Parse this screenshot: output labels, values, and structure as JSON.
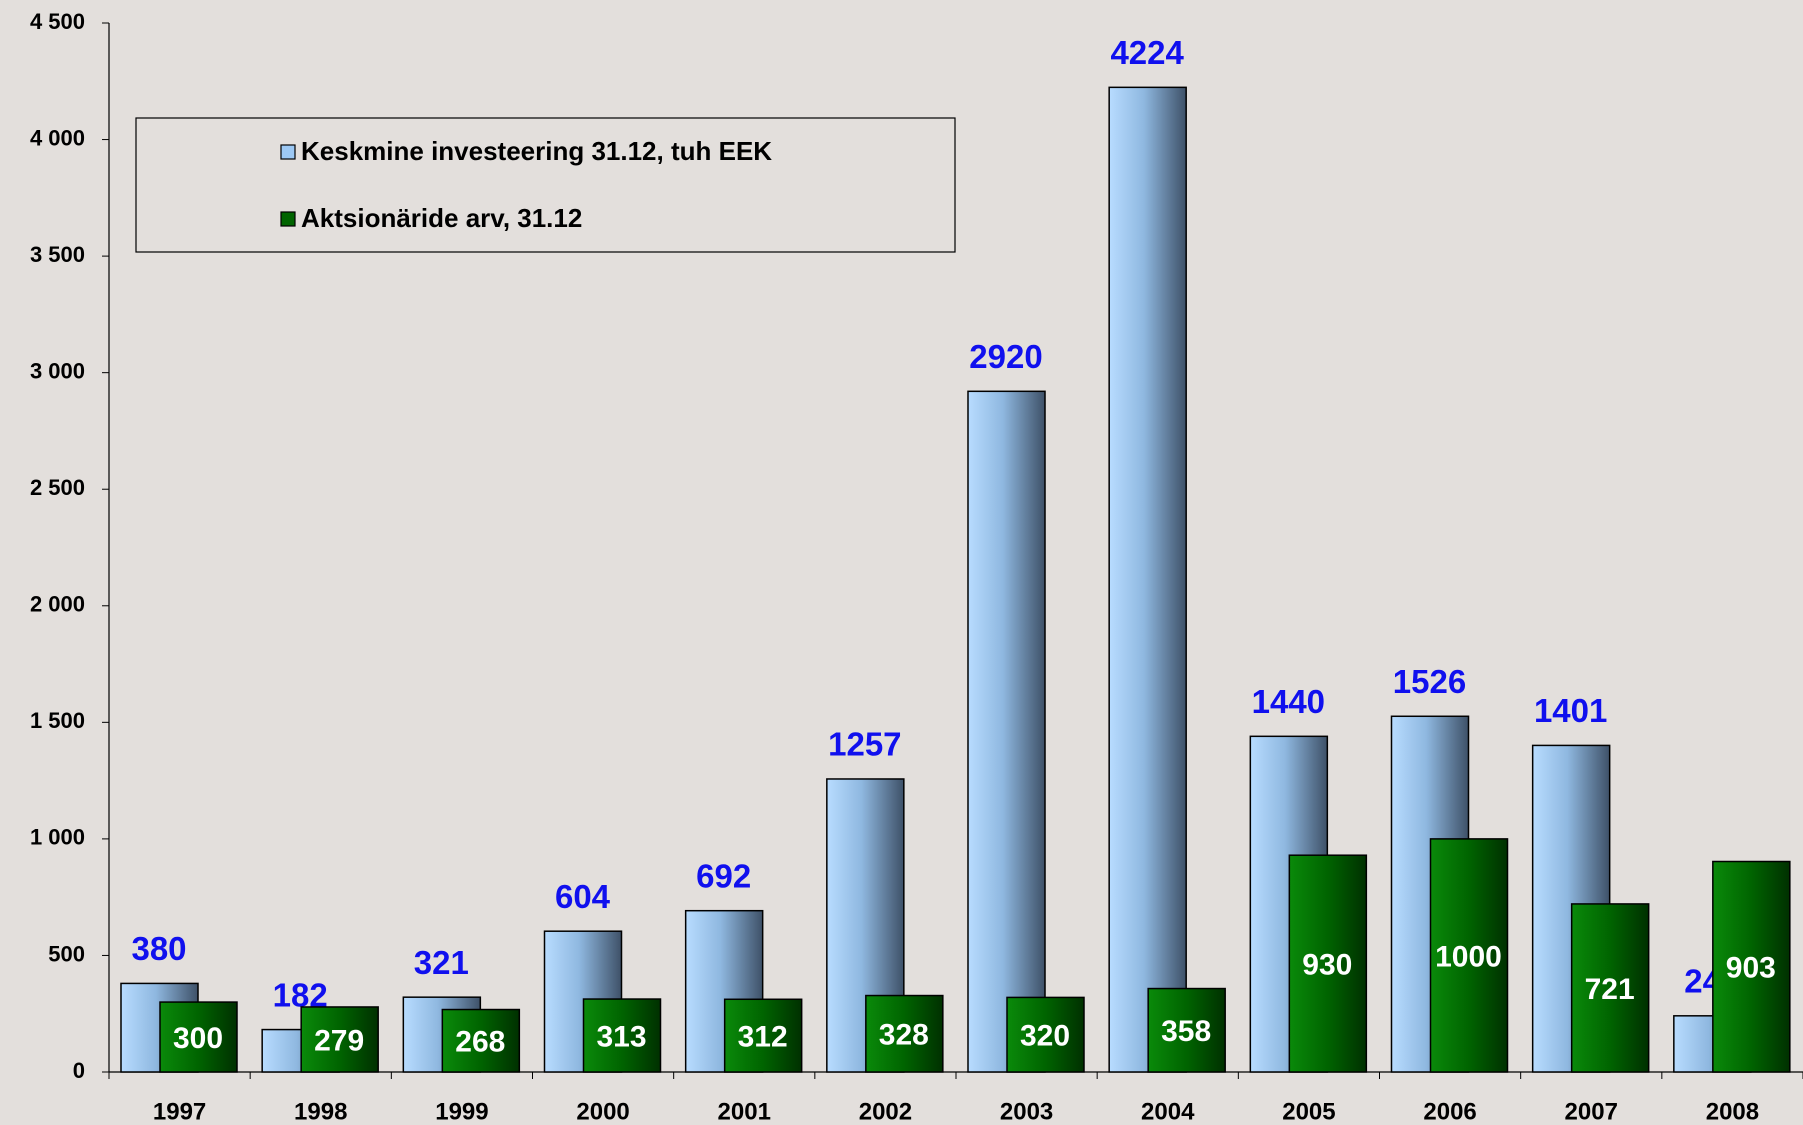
{
  "chart_data": {
    "type": "bar",
    "categories": [
      "1997",
      "1998",
      "1999",
      "2000",
      "2001",
      "2002",
      "2003",
      "2004",
      "2005",
      "2006",
      "2007",
      "2008"
    ],
    "series": [
      {
        "name": "Keskmine investeering 31.12, tuh EEK",
        "color": "#9cc8f4",
        "values": [
          380,
          182,
          321,
          604,
          692,
          1257,
          2920,
          4224,
          1440,
          1526,
          1401,
          241
        ]
      },
      {
        "name": "Aktsionäride arv, 31.12",
        "color": "#006400",
        "values": [
          300,
          279,
          268,
          313,
          312,
          328,
          320,
          358,
          930,
          1000,
          721,
          903
        ]
      }
    ],
    "ylim": [
      0,
      4500
    ],
    "yticks": [
      0,
      500,
      {
        "value": 1000,
        "label": "1 000"
      },
      {
        "value": 1500,
        "label": "1 500"
      },
      {
        "value": 2000,
        "label": "2 000"
      },
      {
        "value": 2500,
        "label": "2 500"
      },
      {
        "value": 3000,
        "label": "3 000"
      },
      {
        "value": 3500,
        "label": "3 500"
      },
      {
        "value": 4000,
        "label": "4 000"
      },
      {
        "value": 4500,
        "label": "4 500"
      }
    ],
    "legend": "top-left"
  }
}
